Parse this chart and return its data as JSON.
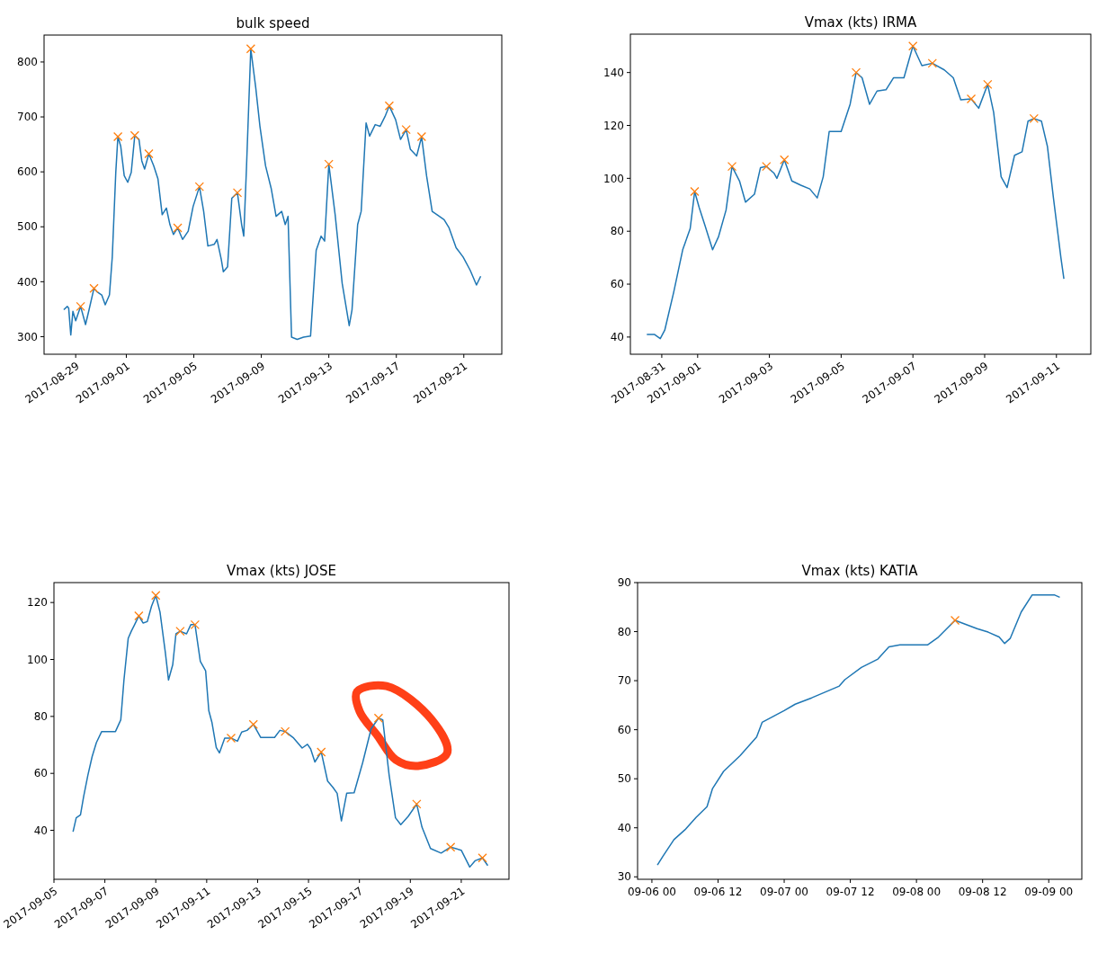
{
  "chart_data": [
    {
      "type": "line",
      "title": "bulk speed",
      "xlim": [
        "2017-08-27T03:00",
        "2017-09-23T06:00"
      ],
      "ylim": [
        268,
        849
      ],
      "yticks": [
        300,
        400,
        500,
        600,
        700,
        800
      ],
      "xticks": [
        "2017-08-29",
        "2017-09-01",
        "2017-09-05",
        "2017-09-09",
        "2017-09-13",
        "2017-09-17",
        "2017-09-21"
      ],
      "series": [
        {
          "type": "line",
          "color": "#1f77b4",
          "marker": "none",
          "x": [
            "2017-08-28T07:00",
            "2017-08-28T12:00",
            "2017-08-28T14:00",
            "2017-08-28T17:00",
            "2017-08-28T20:00",
            "2017-08-29T00:00",
            "2017-08-29T07:00",
            "2017-08-29T14:00",
            "2017-08-29T19:00",
            "2017-08-30T02:00",
            "2017-08-30T06:00",
            "2017-08-30T13:00",
            "2017-08-30T18:00",
            "2017-08-31T00:00",
            "2017-08-31T04:00",
            "2017-08-31T09:00",
            "2017-08-31T12:00",
            "2017-08-31T16:00",
            "2017-08-31T21:00",
            "2017-09-01T02:00",
            "2017-09-01T07:00",
            "2017-09-01T12:00",
            "2017-09-01T18:00",
            "2017-09-01T22:00",
            "2017-09-02T02:00",
            "2017-09-02T08:00",
            "2017-09-02T15:00",
            "2017-09-02T21:00",
            "2017-09-03T03:00",
            "2017-09-03T09:00",
            "2017-09-03T14:00",
            "2017-09-03T19:00",
            "2017-09-04T01:00",
            "2017-09-04T08:00",
            "2017-09-04T16:00",
            "2017-09-04T23:00",
            "2017-09-05T08:00",
            "2017-09-05T14:00",
            "2017-09-05T20:00",
            "2017-09-06T05:00",
            "2017-09-06T09:00",
            "2017-09-06T15:00",
            "2017-09-06T18:00",
            "2017-09-07T00:00",
            "2017-09-07T06:00",
            "2017-09-07T14:00",
            "2017-09-07T20:00",
            "2017-09-07T23:00",
            "2017-09-08T03:00",
            "2017-09-08T09:00",
            "2017-09-08T16:00",
            "2017-09-08T22:00",
            "2017-09-09T06:00",
            "2017-09-09T14:00",
            "2017-09-09T21:00",
            "2017-09-10T05:00",
            "2017-09-10T10:00",
            "2017-09-10T14:00",
            "2017-09-10T19:00",
            "2017-09-11T03:00",
            "2017-09-11T12:00",
            "2017-09-11T22:00",
            "2017-09-12T06:00",
            "2017-09-12T13:00",
            "2017-09-12T18:00",
            "2017-09-13T00:00",
            "2017-09-13T09:00",
            "2017-09-13T19:00",
            "2017-09-14T05:00",
            "2017-09-14T09:00",
            "2017-09-14T17:00",
            "2017-09-14T22:00",
            "2017-09-15T05:00",
            "2017-09-15T10:00",
            "2017-09-15T18:00",
            "2017-09-16T01:00",
            "2017-09-16T08:00",
            "2017-09-16T14:00",
            "2017-09-16T23:00",
            "2017-09-17T06:00",
            "2017-09-17T14:00",
            "2017-09-17T20:00",
            "2017-09-18T05:00",
            "2017-09-18T12:00",
            "2017-09-18T19:00",
            "2017-09-19T03:00",
            "2017-09-19T10:00",
            "2017-09-19T20:00",
            "2017-09-20T03:00",
            "2017-09-20T13:00",
            "2017-09-20T23:00",
            "2017-09-21T09:00",
            "2017-09-21T18:00",
            "2017-09-22T00:00"
          ],
          "values": [
            349,
            355,
            352,
            303,
            346,
            329,
            355,
            322,
            349,
            388,
            382,
            376,
            358,
            376,
            445,
            599,
            664,
            647,
            593,
            581,
            599,
            666,
            659,
            620,
            605,
            633,
            611,
            587,
            522,
            534,
            504,
            486,
            498,
            477,
            492,
            537,
            573,
            528,
            465,
            468,
            477,
            441,
            418,
            427,
            552,
            562,
            504,
            483,
            611,
            824,
            754,
            683,
            611,
            570,
            519,
            528,
            504,
            519,
            299,
            295,
            299,
            301,
            457,
            483,
            474,
            614,
            522,
            397,
            320,
            349,
            504,
            528,
            689,
            665,
            686,
            683,
            701,
            720,
            695,
            659,
            677,
            641,
            629,
            664,
            593,
            528,
            522,
            513,
            498,
            462,
            445,
            421,
            394,
            410
          ]
        },
        {
          "type": "scatter",
          "color": "#ff7f0e",
          "marker": "cross",
          "x": [
            "2017-08-29T07:00",
            "2017-08-30T02:00",
            "2017-08-31T12:00",
            "2017-09-01T12:00",
            "2017-09-02T08:00",
            "2017-09-04T01:00",
            "2017-09-05T08:00",
            "2017-09-07T14:00",
            "2017-09-08T09:00",
            "2017-09-13T00:00",
            "2017-09-16T14:00",
            "2017-09-17T14:00",
            "2017-09-18T12:00"
          ],
          "values": [
            355,
            388,
            664,
            666,
            633,
            498,
            573,
            562,
            824,
            614,
            720,
            677,
            664
          ]
        }
      ]
    },
    {
      "type": "line",
      "title": "Vmax (kts) IRMA",
      "xlim": [
        "2017-08-30T03:00",
        "2017-09-11T23:00"
      ],
      "ylim": [
        33.5,
        154.5
      ],
      "yticks": [
        40,
        60,
        80,
        100,
        120,
        140
      ],
      "xticks": [
        "2017-08-31",
        "2017-09-01",
        "2017-09-03",
        "2017-09-05",
        "2017-09-07",
        "2017-09-09",
        "2017-09-11"
      ],
      "series": [
        {
          "type": "line",
          "color": "#1f77b4",
          "marker": "none",
          "x": [
            "2017-08-30T14:00",
            "2017-08-30T19:00",
            "2017-08-30T23:00",
            "2017-08-31T02:00",
            "2017-08-31T08:00",
            "2017-08-31T14:00",
            "2017-08-31T19:00",
            "2017-08-31T22:00",
            "2017-09-01T01:00",
            "2017-09-01T05:00",
            "2017-09-01T10:00",
            "2017-09-01T14:00",
            "2017-09-01T19:00",
            "2017-09-01T23:00",
            "2017-09-02T04:00",
            "2017-09-02T08:00",
            "2017-09-02T14:00",
            "2017-09-02T18:00",
            "2017-09-02T22:00",
            "2017-09-03T03:00",
            "2017-09-03T05:00",
            "2017-09-03T10:00",
            "2017-09-03T15:00",
            "2017-09-03T21:00",
            "2017-09-04T03:00",
            "2017-09-04T08:00",
            "2017-09-04T12:00",
            "2017-09-04T16:00",
            "2017-09-05T00:00",
            "2017-09-05T06:00",
            "2017-09-05T10:00",
            "2017-09-05T14:00",
            "2017-09-05T19:00",
            "2017-09-06T00:00",
            "2017-09-06T06:00",
            "2017-09-06T11:00",
            "2017-09-06T18:00",
            "2017-09-07T00:00",
            "2017-09-07T06:00",
            "2017-09-07T13:00",
            "2017-09-07T21:00",
            "2017-09-08T03:00",
            "2017-09-08T08:00",
            "2017-09-08T15:00",
            "2017-09-08T20:00",
            "2017-09-09T02:00",
            "2017-09-09T06:00",
            "2017-09-09T11:00",
            "2017-09-09T15:00",
            "2017-09-09T20:00",
            "2017-09-10T01:00",
            "2017-09-10T05:00",
            "2017-09-10T09:00",
            "2017-09-10T14:00",
            "2017-09-10T18:00",
            "2017-09-10T22:00",
            "2017-09-11T03:00",
            "2017-09-11T05:00"
          ],
          "values": [
            41,
            41,
            39.4,
            42.6,
            57,
            73,
            81,
            95,
            89,
            82,
            73,
            78,
            88,
            104.5,
            99,
            91,
            94,
            104,
            104.5,
            102,
            100,
            107,
            99,
            97.4,
            96,
            92.6,
            100.6,
            117.7,
            117.7,
            128,
            140,
            138,
            128,
            133,
            133.5,
            138,
            138,
            150,
            142.6,
            143.5,
            141,
            138,
            129.7,
            130,
            126.5,
            135.5,
            125,
            100.6,
            96.5,
            108.7,
            110,
            121.6,
            122.6,
            121.6,
            112,
            92.6,
            70,
            62
          ]
        },
        {
          "type": "scatter",
          "color": "#ff7f0e",
          "marker": "cross",
          "x": [
            "2017-08-31T22:00",
            "2017-09-01T23:00",
            "2017-09-02T22:00",
            "2017-09-03T10:00",
            "2017-09-05T10:00",
            "2017-09-07T00:00",
            "2017-09-07T13:00",
            "2017-09-08T15:00",
            "2017-09-09T02:00",
            "2017-09-10T09:00"
          ],
          "values": [
            95,
            104.5,
            104.5,
            107,
            140,
            150,
            143.5,
            130,
            135.5,
            122.6
          ]
        }
      ]
    },
    {
      "type": "line",
      "title": "Vmax (kts) JOSE",
      "xlim": [
        "2017-09-05T00:00",
        "2017-09-22T21:00"
      ],
      "ylim": [
        22.8,
        127
      ],
      "yticks": [
        40,
        60,
        80,
        100,
        120
      ],
      "xticks": [
        "2017-09-05",
        "2017-09-07",
        "2017-09-09",
        "2017-09-11",
        "2017-09-13",
        "2017-09-15",
        "2017-09-17",
        "2017-09-19",
        "2017-09-21"
      ],
      "series": [
        {
          "type": "line",
          "color": "#1f77b4",
          "marker": "none",
          "x": [
            "2017-09-05T18:00",
            "2017-09-05T21:00",
            "2017-09-06T01:00",
            "2017-09-06T04:00",
            "2017-09-06T08:00",
            "2017-09-06T12:00",
            "2017-09-06T16:00",
            "2017-09-06T21:00",
            "2017-09-07T10:00",
            "2017-09-07T15:00",
            "2017-09-07T18:00",
            "2017-09-07T22:00",
            "2017-09-08T01:00",
            "2017-09-08T04:00",
            "2017-09-08T08:00",
            "2017-09-08T12:00",
            "2017-09-08T16:00",
            "2017-09-08T20:00",
            "2017-09-09T00:00",
            "2017-09-09T04:00",
            "2017-09-09T09:00",
            "2017-09-09T12:00",
            "2017-09-09T16:00",
            "2017-09-09T19:00",
            "2017-09-09T23:00",
            "2017-09-10T05:00",
            "2017-09-10T09:00",
            "2017-09-10T13:00",
            "2017-09-10T18:00",
            "2017-09-10T23:00",
            "2017-09-11T02:00",
            "2017-09-11T05:00",
            "2017-09-11T09:00",
            "2017-09-11T12:00",
            "2017-09-11T17:00",
            "2017-09-11T23:00",
            "2017-09-12T05:00",
            "2017-09-12T09:00",
            "2017-09-12T14:00",
            "2017-09-12T20:00",
            "2017-09-13T03:00",
            "2017-09-13T16:00",
            "2017-09-13T21:00",
            "2017-09-14T02:00",
            "2017-09-14T10:00",
            "2017-09-14T18:00",
            "2017-09-14T23:00",
            "2017-09-15T02:00",
            "2017-09-15T06:00",
            "2017-09-15T12:00",
            "2017-09-15T18:00",
            "2017-09-15T23:00",
            "2017-09-16T03:00",
            "2017-09-16T07:00",
            "2017-09-16T12:00",
            "2017-09-16T19:00",
            "2017-09-17T03:00",
            "2017-09-17T11:00",
            "2017-09-17T18:00",
            "2017-09-17T22:00",
            "2017-09-18T04:00",
            "2017-09-18T10:00",
            "2017-09-18T15:00",
            "2017-09-18T22:00",
            "2017-09-19T06:00",
            "2017-09-19T11:00",
            "2017-09-19T19:00",
            "2017-09-20T05:00",
            "2017-09-20T14:00",
            "2017-09-21T00:00",
            "2017-09-21T08:00",
            "2017-09-21T13:00",
            "2017-09-21T20:00",
            "2017-09-22T01:00"
          ],
          "values": [
            39.5,
            44.4,
            45.4,
            51.9,
            59.4,
            65.9,
            70.8,
            74.7,
            74.7,
            78.8,
            92.8,
            107.4,
            110,
            112.2,
            115.3,
            112.8,
            113.3,
            118.7,
            122.5,
            116.6,
            102.5,
            92.8,
            98.2,
            109,
            109.9,
            109,
            112.2,
            112.2,
            99.3,
            96,
            82,
            77.8,
            69.1,
            67.2,
            72.4,
            72.4,
            71.3,
            74.5,
            75.1,
            77.2,
            72.6,
            72.6,
            75.1,
            74.7,
            72.4,
            68.9,
            70.2,
            68.6,
            64,
            67.5,
            57.3,
            55.1,
            53,
            43.3,
            53,
            53.2,
            63.7,
            75.6,
            79.4,
            78.8,
            59.4,
            44.4,
            42,
            44.9,
            49.2,
            41.1,
            33.6,
            32,
            34.1,
            33,
            27.1,
            29.3,
            30.3,
            27.6
          ]
        },
        {
          "type": "scatter",
          "color": "#ff7f0e",
          "marker": "cross",
          "x": [
            "2017-09-08T08:00",
            "2017-09-09T00:00",
            "2017-09-09T23:00",
            "2017-09-10T13:00",
            "2017-09-11T23:00",
            "2017-09-12T20:00",
            "2017-09-14T02:00",
            "2017-09-15T12:00",
            "2017-09-17T18:00",
            "2017-09-19T06:00",
            "2017-09-20T14:00",
            "2017-09-21T20:00"
          ],
          "values": [
            115.3,
            122.5,
            109.9,
            112.2,
            72.4,
            77.2,
            74.7,
            67.5,
            79.4,
            49.2,
            34.1,
            30.3
          ]
        }
      ]
    },
    {
      "type": "line",
      "title": "Vmax (kts) KATIA",
      "xlim": [
        "2017-09-05T21:24",
        "2017-09-09T06:00"
      ],
      "ylim": [
        29.5,
        90
      ],
      "yticks": [
        30,
        40,
        50,
        60,
        70,
        80,
        90
      ],
      "xticks": [
        {
          "value": "2017-09-06T00:00",
          "label": "09-06 00"
        },
        {
          "value": "2017-09-06T12:00",
          "label": "09-06 12"
        },
        {
          "value": "2017-09-07T00:00",
          "label": "09-07 00"
        },
        {
          "value": "2017-09-07T12:00",
          "label": "09-07 12"
        },
        {
          "value": "2017-09-08T00:00",
          "label": "09-08 00"
        },
        {
          "value": "2017-09-08T12:00",
          "label": "09-08 12"
        },
        {
          "value": "2017-09-09T00:00",
          "label": "09-09 00"
        }
      ],
      "series": [
        {
          "type": "line",
          "color": "#1f77b4",
          "marker": "none",
          "x": [
            "2017-09-06T01:00",
            "2017-09-06T02:00",
            "2017-09-06T04:00",
            "2017-09-06T06:00",
            "2017-09-06T08:00",
            "2017-09-06T10:00",
            "2017-09-06T11:00",
            "2017-09-06T13:00",
            "2017-09-06T16:00",
            "2017-09-06T19:00",
            "2017-09-06T20:00",
            "2017-09-06T22:00",
            "2017-09-07T00:00",
            "2017-09-07T02:00",
            "2017-09-07T05:00",
            "2017-09-07T10:00",
            "2017-09-07T11:00",
            "2017-09-07T14:00",
            "2017-09-07T17:00",
            "2017-09-07T19:00",
            "2017-09-07T21:00",
            "2017-09-08T02:00",
            "2017-09-08T04:00",
            "2017-09-08T07:00",
            "2017-09-08T11:00",
            "2017-09-08T13:00",
            "2017-09-08T15:00",
            "2017-09-08T16:00",
            "2017-09-08T17:00",
            "2017-09-08T19:00",
            "2017-09-08T21:00",
            "2017-09-09T01:00",
            "2017-09-09T02:00"
          ],
          "values": [
            32.4,
            34.2,
            37.6,
            39.6,
            42.1,
            44.3,
            48,
            51.5,
            54.7,
            58.5,
            61.5,
            62.7,
            63.9,
            65.2,
            66.5,
            68.9,
            70.2,
            72.7,
            74.4,
            76.9,
            77.3,
            77.3,
            78.9,
            82.3,
            80.6,
            79.9,
            78.9,
            77.6,
            78.6,
            84,
            87.5,
            87.5,
            87
          ]
        },
        {
          "type": "scatter",
          "color": "#ff7f0e",
          "marker": "cross",
          "x": [
            "2017-09-08T07:00"
          ],
          "values": [
            82.3
          ]
        }
      ]
    }
  ]
}
